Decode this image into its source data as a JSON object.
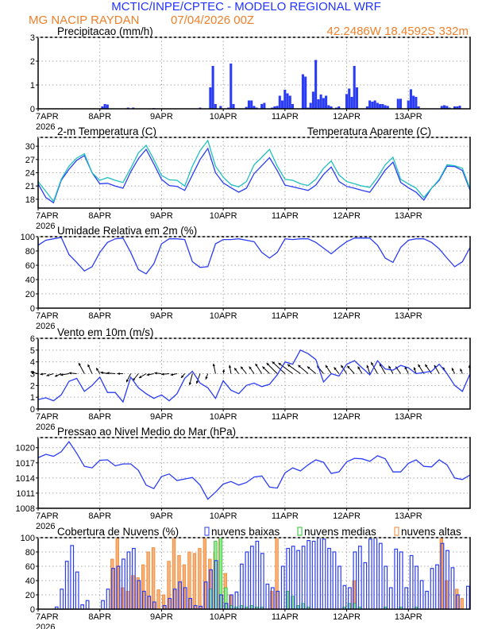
{
  "header": {
    "title": "MCTIC/INPE/CPTEC - MODELO REGIONAL WRF",
    "station": "MG NACIP RAYDAN",
    "run": "07/04/2026 00Z",
    "coords": "42.2486W 18.4592S 332m",
    "title_color": "#2233ff",
    "station_color": "#f0802a"
  },
  "x_axis": {
    "day_labels": [
      "7APR",
      "8APR",
      "9APR",
      "10APR",
      "11APR",
      "12APR",
      "13APR"
    ],
    "year_label": "2026",
    "range": [
      "7APR 00Z",
      "14APR 00Z"
    ],
    "grid": true
  },
  "chart_data": [
    {
      "type": "bar",
      "title": "Precipitacao (mm/h)",
      "ylim": [
        0,
        3
      ],
      "yticks": [
        "0",
        "1",
        "2",
        "3"
      ],
      "color": "#2b3cf5",
      "points": [
        [
          "8APR 01Z",
          0.1
        ],
        [
          "8APR 02Z",
          0.2
        ],
        [
          "8APR 03Z",
          0.18
        ],
        [
          "8APR 11Z",
          0.05
        ],
        [
          "8APR 13Z",
          0.05
        ],
        [
          "8APR 21Z",
          0.03
        ],
        [
          "9APR 15Z",
          0.05
        ],
        [
          "9APR 19Z",
          0.9
        ],
        [
          "9APR 20Z",
          1.8
        ],
        [
          "9APR 21Z",
          0.2
        ],
        [
          "9APR 23Z",
          0.12
        ],
        [
          "10APR 02Z",
          0.05
        ],
        [
          "10APR 03Z",
          1.9
        ],
        [
          "10APR 04Z",
          0.2
        ],
        [
          "10APR 09Z",
          0.08
        ],
        [
          "10APR 10Z",
          0.35
        ],
        [
          "10APR 11Z",
          0.35
        ],
        [
          "10APR 12Z",
          0.12
        ],
        [
          "10APR 13Z",
          0.05
        ],
        [
          "10APR 15Z",
          0.2
        ],
        [
          "10APR 16Z",
          0.25
        ],
        [
          "10APR 19Z",
          0.05
        ],
        [
          "10APR 20Z",
          0.1
        ],
        [
          "10APR 21Z",
          0.12
        ],
        [
          "10APR 22Z",
          0.55
        ],
        [
          "10APR 23Z",
          0.35
        ],
        [
          "11APR 00Z",
          0.8
        ],
        [
          "11APR 01Z",
          0.65
        ],
        [
          "11APR 02Z",
          0.55
        ],
        [
          "11APR 03Z",
          0.2
        ],
        [
          "11APR 07Z",
          1.45
        ],
        [
          "11APR 08Z",
          1.35
        ],
        [
          "11APR 09Z",
          0.05
        ],
        [
          "11APR 10Z",
          0.25
        ],
        [
          "11APR 11Z",
          0.72
        ],
        [
          "11APR 12Z",
          2.05
        ],
        [
          "11APR 13Z",
          0.4
        ],
        [
          "11APR 14Z",
          0.6
        ],
        [
          "11APR 15Z",
          0.45
        ],
        [
          "11APR 16Z",
          0.55
        ],
        [
          "11APR 17Z",
          0.15
        ],
        [
          "11APR 18Z",
          0.1
        ],
        [
          "11APR 20Z",
          0.05
        ],
        [
          "11APR 21Z",
          0.1
        ],
        [
          "12APR 00Z",
          0.62
        ],
        [
          "12APR 01Z",
          0.85
        ],
        [
          "12APR 02Z",
          0.5
        ],
        [
          "12APR 03Z",
          1.8
        ],
        [
          "12APR 04Z",
          0.9
        ],
        [
          "12APR 08Z",
          0.1
        ],
        [
          "12APR 09Z",
          0.35
        ],
        [
          "12APR 10Z",
          0.3
        ],
        [
          "12APR 11Z",
          0.35
        ],
        [
          "12APR 12Z",
          0.25
        ],
        [
          "12APR 13Z",
          0.2
        ],
        [
          "12APR 14Z",
          0.2
        ],
        [
          "12APR 15Z",
          0.15
        ],
        [
          "12APR 16Z",
          0.12
        ],
        [
          "12APR 20Z",
          0.42
        ],
        [
          "12APR 21Z",
          0.42
        ],
        [
          "13APR 00Z",
          0.35
        ],
        [
          "13APR 01Z",
          0.82
        ],
        [
          "13APR 02Z",
          0.55
        ],
        [
          "13APR 03Z",
          0.5
        ],
        [
          "13APR 04Z",
          0.1
        ],
        [
          "13APR 13Z",
          0.12
        ],
        [
          "13APR 14Z",
          0.15
        ],
        [
          "13APR 15Z",
          0.12
        ],
        [
          "13APR 16Z",
          0.05
        ],
        [
          "13APR 18Z",
          0.1
        ],
        [
          "13APR 19Z",
          0.1
        ],
        [
          "13APR 20Z",
          0.13
        ]
      ]
    },
    {
      "type": "line",
      "title": "2-m Temperatura (C)",
      "ylim": [
        16,
        32
      ],
      "yticks": [
        "18",
        "21",
        "24",
        "27",
        "30"
      ],
      "x_step": "3-hourly from 7APR 00Z to 14APR 00Z",
      "series": [
        {
          "name": "2-m Temperatura (C)",
          "color": "#2b3cf5",
          "values": [
            21.5,
            18.4,
            17.2,
            22.3,
            24.8,
            26.8,
            27.9,
            24.0,
            21.5,
            21.6,
            21.0,
            20.5,
            24.2,
            27.2,
            29.3,
            26.0,
            22.5,
            21.1,
            20.9,
            20.0,
            23.5,
            27.0,
            29.5,
            24.0,
            21.7,
            20.6,
            19.6,
            20.5,
            23.8,
            25.6,
            27.4,
            24.5,
            21.2,
            20.8,
            20.4,
            20.0,
            21.2,
            23.6,
            25.3,
            22.0,
            20.9,
            20.5,
            20.0,
            19.6,
            22.0,
            24.6,
            26.4,
            21.8,
            20.6,
            19.6,
            17.8,
            20.5,
            22.3,
            25.5,
            25.4,
            24.5,
            20.0
          ]
        },
        {
          "name": "Temperatura Aparente (C)",
          "color": "#20c0c0",
          "values": [
            22.0,
            19.8,
            17.5,
            22.5,
            25.5,
            27.3,
            28.3,
            24.0,
            22.3,
            22.9,
            22.3,
            21.8,
            25.0,
            28.5,
            30.2,
            27.0,
            23.4,
            22.4,
            22.3,
            21.0,
            25.5,
            29.0,
            31.3,
            25.5,
            23.0,
            21.3,
            20.8,
            22.0,
            25.8,
            27.5,
            29.3,
            25.5,
            22.5,
            22.3,
            21.5,
            21.1,
            22.5,
            25.0,
            26.7,
            23.5,
            22.0,
            21.5,
            21.0,
            20.7,
            23.0,
            25.8,
            27.5,
            22.5,
            21.5,
            20.5,
            18.4,
            20.5,
            22.5,
            25.8,
            25.6,
            25.0,
            20.3
          ]
        }
      ]
    },
    {
      "type": "line",
      "title": "Umidade Relativa em 2m (%)",
      "ylim": [
        0,
        100
      ],
      "yticks": [
        "0",
        "20",
        "40",
        "60",
        "80",
        "100"
      ],
      "x_step": "3-hourly from 7APR 00Z to 14APR 00Z",
      "series": [
        {
          "color": "#2b3cf5",
          "values": [
            88,
            95,
            97,
            99,
            75,
            64,
            52,
            58,
            78,
            92,
            97,
            98,
            78,
            54,
            48,
            62,
            90,
            97,
            97,
            96,
            65,
            57,
            58,
            90,
            96,
            96,
            97,
            95,
            93,
            78,
            70,
            78,
            97,
            96,
            97,
            97,
            92,
            84,
            76,
            85,
            93,
            98,
            98,
            98,
            88,
            70,
            64,
            85,
            95,
            97,
            97,
            92,
            83,
            70,
            58,
            65,
            85
          ]
        }
      ]
    },
    {
      "type": "line",
      "title": "Vento em 10m (m/s)",
      "ylim": [
        0,
        6
      ],
      "yticks": [
        "0",
        "1",
        "2",
        "3",
        "4",
        "5",
        "6"
      ],
      "x_step": "3-hourly from 7APR 00Z to 14APR 00Z",
      "series": [
        {
          "color": "#2b3cf5",
          "values": [
            0.8,
            0.95,
            0.7,
            1.2,
            2.35,
            2.6,
            1.5,
            2.0,
            2.7,
            1.4,
            1.4,
            0.6,
            2.7,
            1.8,
            1.3,
            0.9,
            1.2,
            0.7,
            1.3,
            2.6,
            3.2,
            2.2,
            1.8,
            0.9,
            2.4,
            1.6,
            1.3,
            2.0,
            2.2,
            1.9,
            2.1,
            2.9,
            4.0,
            3.8,
            5.0,
            4.7,
            4.2,
            2.3,
            3.0,
            2.8,
            3.8,
            4.1,
            3.5,
            2.9,
            4.1,
            3.4,
            3.3,
            3.7,
            3.5,
            3.0,
            3.1,
            3.2,
            3.8,
            3.0,
            2.0,
            1.5,
            3.0
          ]
        }
      ],
      "vectors": {
        "baseline": 3,
        "color": "#000000",
        "u": [
          -1.0,
          -0.8,
          -1.0,
          -0.9,
          -1.2,
          -1.1,
          -0.8,
          -0.6,
          -0.5,
          -1.0,
          -1.2,
          -0.8,
          -0.6,
          -0.8,
          -1.0,
          -1.0,
          -1.0,
          -1.1,
          -0.9,
          -0.5,
          -0.4,
          -0.5,
          -0.3,
          -0.3,
          0.1,
          -0.2,
          -0.6,
          -0.8,
          -0.7,
          -0.9,
          -1.0,
          -1.5,
          -1.8,
          -2.0,
          -1.8,
          -1.4,
          -1.2,
          -0.9,
          -0.8,
          -0.7,
          -0.8,
          -1.0,
          -0.6,
          -0.4,
          -0.9,
          -0.8,
          -0.6,
          -0.7,
          -0.5,
          -0.3,
          -0.8,
          -0.9,
          -0.7,
          -0.6,
          -0.4,
          -0.3,
          -0.1
        ],
        "v": [
          0.2,
          -0.1,
          -0.3,
          -0.4,
          -0.2,
          0.1,
          1.5,
          1.3,
          0.8,
          0.2,
          0.1,
          0.0,
          -1.2,
          -1.0,
          -0.6,
          -0.2,
          0.1,
          -0.1,
          -0.2,
          -0.6,
          -1.6,
          -1.4,
          -0.8,
          1.4,
          0.6,
          1.2,
          0.8,
          1.0,
          1.0,
          1.4,
          1.0,
          1.5,
          1.7,
          1.5,
          1.3,
          1.2,
          1.0,
          1.1,
          1.2,
          0.9,
          1.2,
          1.1,
          1.0,
          1.2,
          1.6,
          1.4,
          1.1,
          1.0,
          1.0,
          0.9,
          1.3,
          1.3,
          1.2,
          0.9,
          0.8,
          0.7,
          1.2
        ]
      }
    },
    {
      "type": "line",
      "title": "Pressao ao Nivel Medio do Mar (hPa)",
      "ylim": [
        1008,
        1022
      ],
      "yticks": [
        "1008",
        "1011",
        "1014",
        "1017",
        "1020"
      ],
      "x_step": "3-hourly from 7APR 00Z to 14APR 00Z",
      "series": [
        {
          "color": "#2b3cf5",
          "values": [
            1018.0,
            1018.7,
            1018.3,
            1019.2,
            1021.2,
            1018.9,
            1016.3,
            1016.0,
            1017.5,
            1017.6,
            1016.4,
            1016.8,
            1016.8,
            1015.5,
            1012.6,
            1011.9,
            1014.3,
            1014.8,
            1013.5,
            1013.8,
            1014.1,
            1012.6,
            1009.8,
            1011.2,
            1012.8,
            1013.3,
            1012.6,
            1013.1,
            1014.2,
            1014.4,
            1012.2,
            1012.0,
            1015.0,
            1016.0,
            1015.4,
            1016.6,
            1017.6,
            1017.1,
            1014.9,
            1015.2,
            1017.2,
            1017.9,
            1017.8,
            1017.3,
            1018.4,
            1017.8,
            1015.2,
            1015.2,
            1016.9,
            1017.6,
            1016.3,
            1016.2,
            1017.6,
            1016.6,
            1014.0,
            1013.7,
            1014.6
          ]
        }
      ]
    },
    {
      "type": "bar",
      "title": "Cobertura de Nuvens (%)",
      "ylim": [
        0,
        100
      ],
      "yticks": [
        "0",
        "20",
        "40",
        "60",
        "80",
        "100"
      ],
      "x_step": "2-hourly from 7APR 00Z to 13APR 22Z",
      "legend_position": "top",
      "series": [
        {
          "name": "nuvens altas",
          "color": "#f0862e",
          "values": [
            0,
            0,
            0,
            0,
            0,
            0,
            0,
            0,
            0,
            0,
            0,
            0,
            0,
            0,
            70,
            100,
            30,
            25,
            47,
            44,
            62,
            80,
            86,
            27,
            20,
            67,
            100,
            75,
            62,
            80,
            78,
            85,
            100,
            70,
            80,
            100,
            50,
            20,
            0,
            0,
            0,
            0,
            0,
            0,
            0,
            25,
            100,
            0,
            0,
            0,
            0,
            0,
            0,
            0,
            0,
            0,
            0,
            0,
            0,
            0,
            0,
            40,
            0,
            0,
            0,
            0,
            0,
            0,
            0,
            0,
            0,
            0,
            0,
            0,
            0,
            0,
            0,
            0,
            100,
            40,
            0,
            28,
            15,
            0
          ]
        },
        {
          "name": "nuvens medias",
          "color": "#22c422",
          "values": [
            0,
            0,
            0,
            0,
            0,
            0,
            0,
            0,
            0,
            0,
            0,
            0,
            0,
            0,
            0,
            0,
            0,
            0,
            0,
            0,
            0,
            0,
            0,
            0,
            0,
            0,
            0,
            0,
            0,
            0,
            0,
            0,
            0,
            28,
            95,
            100,
            30,
            5,
            3,
            5,
            3,
            5,
            3,
            3,
            0,
            0,
            0,
            0,
            25,
            18,
            5,
            8,
            3,
            0,
            0,
            0,
            0,
            0,
            0,
            3,
            8,
            8,
            3,
            0,
            0,
            0,
            0,
            3,
            0,
            0,
            3,
            0,
            0,
            3,
            0,
            0,
            0,
            0,
            0,
            0,
            0,
            0,
            0,
            0
          ]
        },
        {
          "name": "nuvens baixas",
          "color": "#2b3cf5",
          "values": [
            0,
            0,
            0,
            3,
            28,
            67,
            89,
            52,
            6,
            12,
            0,
            0,
            12,
            28,
            57,
            60,
            70,
            80,
            85,
            40,
            25,
            18,
            10,
            0,
            5,
            15,
            28,
            38,
            30,
            15,
            5,
            4,
            38,
            55,
            68,
            20,
            8,
            20,
            24,
            63,
            80,
            88,
            95,
            78,
            35,
            30,
            25,
            60,
            85,
            88,
            82,
            88,
            96,
            95,
            100,
            98,
            85,
            80,
            60,
            33,
            30,
            80,
            88,
            65,
            98,
            100,
            92,
            60,
            30,
            84,
            80,
            30,
            75,
            60,
            40,
            25,
            57,
            62,
            92,
            82,
            58,
            20,
            0,
            32
          ]
        }
      ]
    }
  ]
}
